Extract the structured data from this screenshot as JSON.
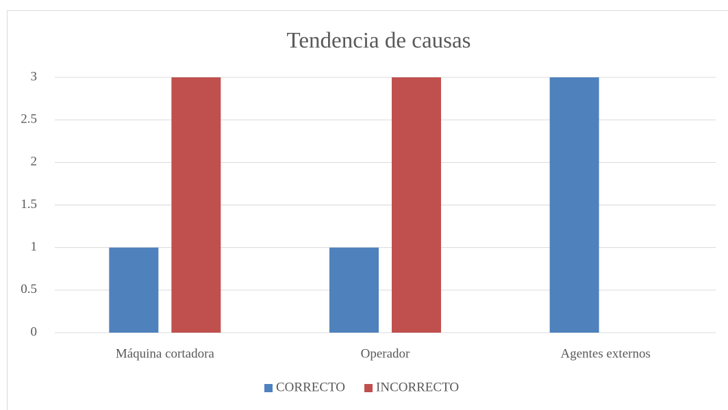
{
  "chart_data": {
    "type": "bar",
    "title": "Tendencia de causas",
    "categories": [
      "Máquina cortadora",
      "Operador",
      "Agentes externos"
    ],
    "series": [
      {
        "name": "CORRECTO",
        "color": "#4f81bd",
        "values": [
          1,
          1,
          3
        ]
      },
      {
        "name": "INCORRECTO",
        "color": "#c0504d",
        "values": [
          3,
          3,
          0
        ]
      }
    ],
    "ylim": [
      0,
      3
    ],
    "yticks": [
      0,
      0.5,
      1,
      1.5,
      2,
      2.5,
      3
    ],
    "grid": true,
    "legend": "bottom"
  }
}
